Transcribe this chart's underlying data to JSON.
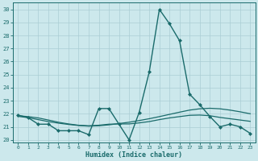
{
  "title": "",
  "xlabel": "Humidex (Indice chaleur)",
  "ylabel": "",
  "background_color": "#cce8ec",
  "grid_color": "#aacdd4",
  "line_color": "#1a6b6b",
  "xlim": [
    -0.5,
    23.5
  ],
  "ylim": [
    19.8,
    30.5
  ],
  "yticks": [
    20,
    21,
    22,
    23,
    24,
    25,
    26,
    27,
    28,
    29,
    30
  ],
  "xticks": [
    0,
    1,
    2,
    3,
    4,
    5,
    6,
    7,
    8,
    9,
    10,
    11,
    12,
    13,
    14,
    15,
    16,
    17,
    18,
    19,
    20,
    21,
    22,
    23
  ],
  "series": [
    {
      "x": [
        0,
        1,
        2,
        3,
        4,
        5,
        6,
        7,
        8,
        9,
        10,
        11,
        12,
        13,
        14,
        15,
        16,
        17,
        18,
        19,
        20,
        21,
        22,
        23
      ],
      "y": [
        21.9,
        21.7,
        21.2,
        21.2,
        20.7,
        20.7,
        20.7,
        20.4,
        22.4,
        22.4,
        21.2,
        20.0,
        22.1,
        25.2,
        30.0,
        28.9,
        27.6,
        23.5,
        22.7,
        21.8,
        21.0,
        21.2,
        21.0,
        20.5
      ],
      "marker": "D",
      "markersize": 2.0,
      "linewidth": 1.0
    },
    {
      "x": [
        0,
        1,
        2,
        3,
        4,
        5,
        6,
        7,
        8,
        9,
        10,
        11,
        12,
        13,
        14,
        15,
        16,
        17,
        18,
        19,
        20,
        21,
        22,
        23
      ],
      "y": [
        21.8,
        21.7,
        21.55,
        21.4,
        21.28,
        21.18,
        21.1,
        21.05,
        21.08,
        21.15,
        21.25,
        21.35,
        21.48,
        21.62,
        21.78,
        21.95,
        22.12,
        22.28,
        22.38,
        22.42,
        22.38,
        22.28,
        22.15,
        22.0
      ],
      "marker": null,
      "linewidth": 0.9
    },
    {
      "x": [
        0,
        1,
        2,
        3,
        4,
        5,
        6,
        7,
        8,
        9,
        10,
        11,
        12,
        13,
        14,
        15,
        16,
        17,
        18,
        19,
        20,
        21,
        22,
        23
      ],
      "y": [
        21.85,
        21.78,
        21.68,
        21.52,
        21.35,
        21.22,
        21.12,
        21.08,
        21.12,
        21.2,
        21.22,
        21.22,
        21.3,
        21.4,
        21.55,
        21.68,
        21.78,
        21.88,
        21.9,
        21.85,
        21.72,
        21.62,
        21.52,
        21.42
      ],
      "marker": null,
      "linewidth": 0.9
    }
  ]
}
